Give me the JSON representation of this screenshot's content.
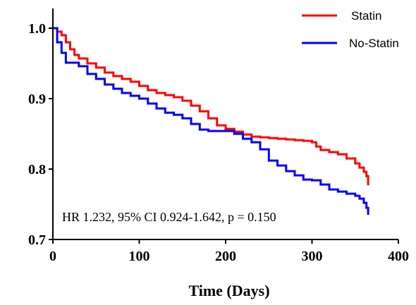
{
  "chart_data": {
    "type": "line",
    "title": "",
    "xlabel": "Time (Days)",
    "ylabel": "",
    "xlim": [
      0,
      400
    ],
    "ylim": [
      0.7,
      1.0
    ],
    "xticks": [
      "0",
      "100",
      "200",
      "300",
      "400"
    ],
    "yticks": [
      "0.7",
      "0.8",
      "0.9",
      "1.0"
    ],
    "grid": false,
    "legend_position": "top-right",
    "annotation": "HR 1.232, 95% CI 0.924-1.642, p = 0.150",
    "series": [
      {
        "name": "Statin",
        "color": "#ff0000",
        "step": true,
        "x": [
          0,
          5,
          10,
          15,
          20,
          25,
          30,
          40,
          50,
          60,
          70,
          80,
          90,
          100,
          110,
          120,
          130,
          140,
          150,
          160,
          170,
          180,
          190,
          200,
          210,
          220,
          230,
          240,
          250,
          260,
          270,
          280,
          290,
          300,
          305,
          310,
          320,
          330,
          340,
          350,
          355,
          360,
          363,
          365
        ],
        "y": [
          1.0,
          0.995,
          0.99,
          0.98,
          0.97,
          0.962,
          0.957,
          0.95,
          0.944,
          0.937,
          0.932,
          0.928,
          0.924,
          0.918,
          0.912,
          0.908,
          0.905,
          0.902,
          0.897,
          0.89,
          0.882,
          0.872,
          0.862,
          0.857,
          0.853,
          0.849,
          0.846,
          0.845,
          0.844,
          0.843,
          0.842,
          0.841,
          0.84,
          0.838,
          0.832,
          0.827,
          0.824,
          0.821,
          0.815,
          0.808,
          0.802,
          0.796,
          0.79,
          0.777
        ]
      },
      {
        "name": "No-Statin",
        "color": "#0000ff",
        "step": true,
        "x": [
          0,
          5,
          10,
          15,
          30,
          40,
          50,
          60,
          70,
          80,
          90,
          100,
          110,
          120,
          130,
          140,
          150,
          160,
          170,
          180,
          190,
          200,
          210,
          220,
          230,
          240,
          250,
          260,
          270,
          280,
          290,
          300,
          310,
          320,
          330,
          340,
          350,
          355,
          360,
          363,
          365
        ],
        "y": [
          1.0,
          0.98,
          0.965,
          0.951,
          0.946,
          0.935,
          0.928,
          0.92,
          0.914,
          0.908,
          0.904,
          0.9,
          0.893,
          0.886,
          0.88,
          0.877,
          0.872,
          0.864,
          0.856,
          0.854,
          0.854,
          0.854,
          0.85,
          0.843,
          0.838,
          0.828,
          0.812,
          0.805,
          0.797,
          0.791,
          0.785,
          0.784,
          0.778,
          0.771,
          0.768,
          0.765,
          0.762,
          0.758,
          0.752,
          0.745,
          0.735
        ]
      }
    ]
  }
}
